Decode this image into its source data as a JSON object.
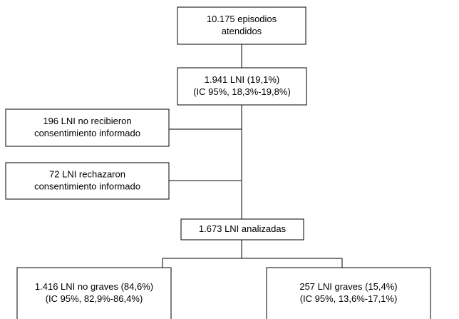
{
  "nodes": [
    {
      "lines": [
        "10.175 episodios",
        "atendidos"
      ]
    },
    {
      "lines": [
        "1.941 LNI (19,1%)",
        "(IC 95%, 18,3%-19,8%)"
      ]
    },
    {
      "lines": [
        "196 LNI no recibieron",
        "consentimiento informado"
      ]
    },
    {
      "lines": [
        "72 LNI rechazaron",
        "consentimiento informado"
      ]
    },
    {
      "lines": [
        "1.673 LNI analizadas"
      ]
    },
    {
      "lines": [
        "1.416 LNI no graves (84,6%)",
        "(IC 95%, 82,9%-86,4%)"
      ]
    },
    {
      "lines": [
        "257 LNI graves (15,4%)",
        "(IC 95%, 13,6%-17,1%)"
      ]
    }
  ]
}
